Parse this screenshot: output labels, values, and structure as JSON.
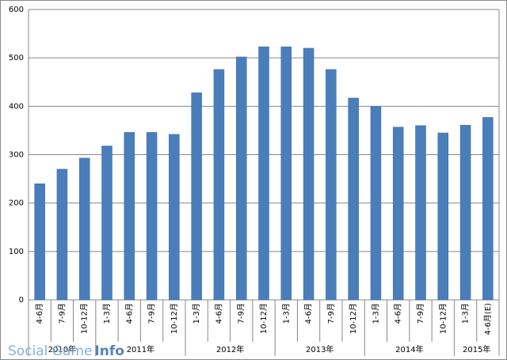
{
  "chart_data": {
    "type": "bar",
    "groups": [
      {
        "label": "2010年",
        "categories": [
          "4-6月",
          "7-9月",
          "10-12月"
        ]
      },
      {
        "label": "2011年",
        "categories": [
          "1-3月",
          "4-6月",
          "7-9月",
          "10-12月"
        ]
      },
      {
        "label": "2012年",
        "categories": [
          "1-3月",
          "4-6月",
          "7-9月",
          "10-12月"
        ]
      },
      {
        "label": "2013年",
        "categories": [
          "1-3月",
          "4-6月",
          "7-9月",
          "10-12月"
        ]
      },
      {
        "label": "2014年",
        "categories": [
          "1-3月",
          "4-6月",
          "7-9月",
          "10-12月"
        ]
      },
      {
        "label": "2015年",
        "categories": [
          "1-3月",
          "4-6月(E)"
        ]
      }
    ],
    "values": [
      240,
      270,
      293,
      318,
      346,
      346,
      342,
      428,
      476,
      502,
      523,
      523,
      520,
      476,
      417,
      400,
      357,
      360,
      345,
      361,
      377
    ],
    "color": "#4a7ebb",
    "ylim": [
      0,
      600
    ],
    "yticks": [
      0,
      100,
      200,
      300,
      400,
      500,
      600
    ],
    "grid": true,
    "watermark": {
      "text": "Social Game",
      "bold": "Info"
    }
  }
}
